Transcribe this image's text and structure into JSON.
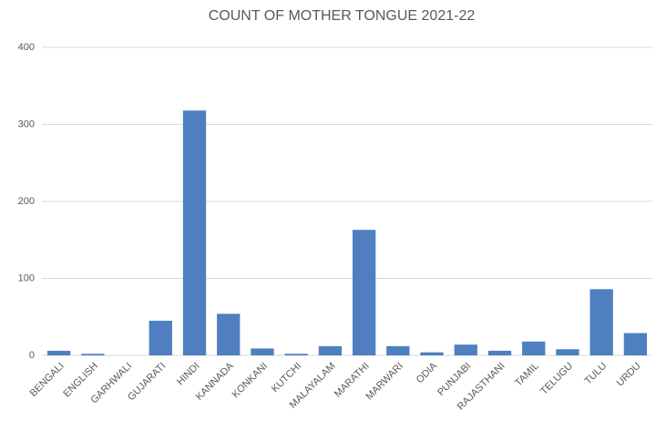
{
  "chart_data": {
    "type": "bar",
    "title": "COUNT OF MOTHER TONGUE 2021-22",
    "categories": [
      "BENGALI",
      "ENGLISH",
      "GARHWALI",
      "GUJARATI",
      "HINDI",
      "KANNADA",
      "KONKANI",
      "KUTCHI",
      "MALAYALAM",
      "MARATHI",
      "MARWARI",
      "ODIA",
      "PUNJABI",
      "RAJASTHANI",
      "TAMIL",
      "TELUGU",
      "TULU",
      "URDU"
    ],
    "values": [
      6,
      2,
      0,
      45,
      318,
      54,
      9,
      2,
      12,
      163,
      12,
      4,
      14,
      6,
      18,
      8,
      86,
      29
    ],
    "color": "#4f7fc0",
    "ylim": [
      0,
      400
    ],
    "yticks": [
      0,
      100,
      200,
      300,
      400
    ],
    "grid": true
  }
}
